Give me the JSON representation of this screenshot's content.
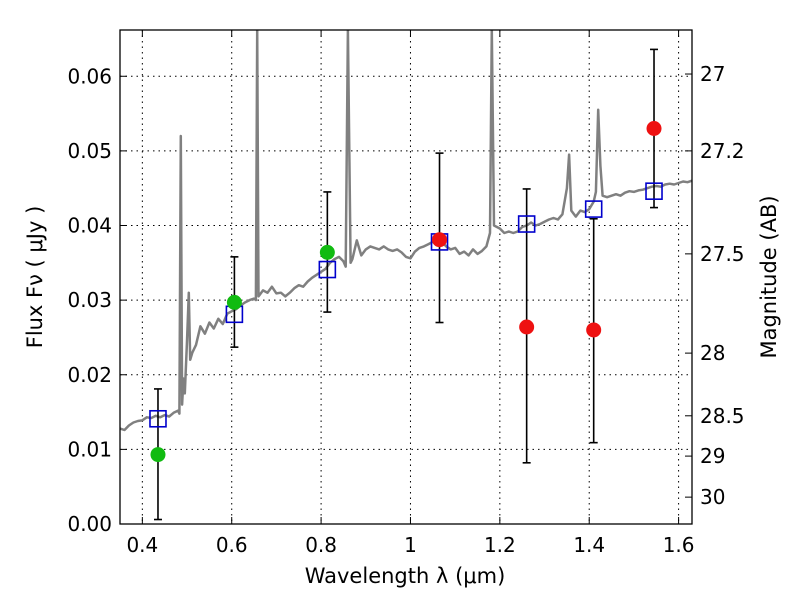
{
  "chart_data": {
    "type": "scatter",
    "xlabel": "Wavelength  λ (μm)",
    "ylabel": "Flux  Fν  ( μJy )",
    "y2label": "Magnitude (AB)",
    "xlim": [
      0.35,
      1.63
    ],
    "ylim": [
      0.0,
      0.0662
    ],
    "grid": true,
    "x_ticks": [
      0.4,
      0.6,
      0.8,
      1.0,
      1.2,
      1.4,
      1.6
    ],
    "x_tick_labels": [
      "0.4",
      "0.6",
      "0.8",
      "1",
      "1.2",
      "1.4",
      "1.6"
    ],
    "y_ticks": [
      0.0,
      0.01,
      0.02,
      0.03,
      0.04,
      0.05,
      0.06
    ],
    "y_tick_labels": [
      "0.00",
      "0.01",
      "0.02",
      "0.03",
      "0.04",
      "0.05",
      "0.06"
    ],
    "mag_ticks": [
      {
        "flux": 0.0603,
        "label": "27"
      },
      {
        "flux": 0.05,
        "label": "27.2"
      },
      {
        "flux": 0.0362,
        "label": "27.5"
      },
      {
        "flux": 0.0229,
        "label": "28"
      },
      {
        "flux": 0.0145,
        "label": "28.5"
      },
      {
        "flux": 0.0091,
        "label": "29"
      },
      {
        "flux": 0.0036,
        "label": "30"
      }
    ],
    "colors": {
      "spectrum": "#808080",
      "model_photometry": "#0000cc",
      "detection": "#11bb11",
      "nondetection": "#ee1111",
      "errorbar": "#000000"
    },
    "spectrum": [
      [
        0.35,
        0.0128
      ],
      [
        0.36,
        0.0126
      ],
      [
        0.37,
        0.0132
      ],
      [
        0.38,
        0.0136
      ],
      [
        0.39,
        0.0138
      ],
      [
        0.4,
        0.0139
      ],
      [
        0.41,
        0.0143
      ],
      [
        0.42,
        0.0142
      ],
      [
        0.43,
        0.0145
      ],
      [
        0.44,
        0.0143
      ],
      [
        0.45,
        0.0146
      ],
      [
        0.46,
        0.0144
      ],
      [
        0.47,
        0.0149
      ],
      [
        0.48,
        0.0152
      ],
      [
        0.483,
        0.0148
      ],
      [
        0.486,
        0.052
      ],
      [
        0.489,
        0.016
      ],
      [
        0.492,
        0.0195
      ],
      [
        0.495,
        0.0175
      ],
      [
        0.5,
        0.0245
      ],
      [
        0.504,
        0.031
      ],
      [
        0.507,
        0.022
      ],
      [
        0.512,
        0.023
      ],
      [
        0.52,
        0.024
      ],
      [
        0.53,
        0.0265
      ],
      [
        0.54,
        0.0255
      ],
      [
        0.55,
        0.027
      ],
      [
        0.56,
        0.0262
      ],
      [
        0.57,
        0.0275
      ],
      [
        0.58,
        0.0268
      ],
      [
        0.59,
        0.0282
      ],
      [
        0.6,
        0.0285
      ],
      [
        0.61,
        0.0288
      ],
      [
        0.62,
        0.0293
      ],
      [
        0.63,
        0.0297
      ],
      [
        0.64,
        0.03
      ],
      [
        0.65,
        0.0302
      ],
      [
        0.654,
        0.03
      ],
      [
        0.657,
        0.0662
      ],
      [
        0.66,
        0.0305
      ],
      [
        0.67,
        0.0313
      ],
      [
        0.68,
        0.031
      ],
      [
        0.69,
        0.0318
      ],
      [
        0.7,
        0.0309
      ],
      [
        0.71,
        0.031
      ],
      [
        0.72,
        0.0305
      ],
      [
        0.73,
        0.031
      ],
      [
        0.74,
        0.0316
      ],
      [
        0.75,
        0.032
      ],
      [
        0.76,
        0.0318
      ],
      [
        0.77,
        0.0325
      ],
      [
        0.78,
        0.033
      ],
      [
        0.79,
        0.0334
      ],
      [
        0.8,
        0.0338
      ],
      [
        0.81,
        0.0342
      ],
      [
        0.82,
        0.035
      ],
      [
        0.83,
        0.0355
      ],
      [
        0.84,
        0.0358
      ],
      [
        0.85,
        0.0352
      ],
      [
        0.855,
        0.0345
      ],
      [
        0.86,
        0.0662
      ],
      [
        0.866,
        0.035
      ],
      [
        0.87,
        0.0355
      ],
      [
        0.88,
        0.038
      ],
      [
        0.89,
        0.036
      ],
      [
        0.9,
        0.0368
      ],
      [
        0.91,
        0.0372
      ],
      [
        0.92,
        0.037
      ],
      [
        0.93,
        0.0368
      ],
      [
        0.94,
        0.0372
      ],
      [
        0.95,
        0.0368
      ],
      [
        0.96,
        0.0366
      ],
      [
        0.97,
        0.0368
      ],
      [
        0.98,
        0.0364
      ],
      [
        0.99,
        0.0358
      ],
      [
        1.0,
        0.0356
      ],
      [
        1.01,
        0.0365
      ],
      [
        1.02,
        0.037
      ],
      [
        1.03,
        0.0372
      ],
      [
        1.04,
        0.0375
      ],
      [
        1.05,
        0.0378
      ],
      [
        1.06,
        0.038
      ],
      [
        1.07,
        0.0378
      ],
      [
        1.08,
        0.0372
      ],
      [
        1.09,
        0.0368
      ],
      [
        1.1,
        0.037
      ],
      [
        1.11,
        0.0362
      ],
      [
        1.12,
        0.0365
      ],
      [
        1.13,
        0.036
      ],
      [
        1.14,
        0.0368
      ],
      [
        1.15,
        0.0362
      ],
      [
        1.16,
        0.0366
      ],
      [
        1.17,
        0.0372
      ],
      [
        1.178,
        0.039
      ],
      [
        1.182,
        0.0662
      ],
      [
        1.187,
        0.04
      ],
      [
        1.2,
        0.0396
      ],
      [
        1.21,
        0.039
      ],
      [
        1.22,
        0.0392
      ],
      [
        1.23,
        0.039
      ],
      [
        1.24,
        0.0392
      ],
      [
        1.25,
        0.0398
      ],
      [
        1.26,
        0.04
      ],
      [
        1.27,
        0.0404
      ],
      [
        1.28,
        0.04
      ],
      [
        1.29,
        0.0402
      ],
      [
        1.3,
        0.0405
      ],
      [
        1.31,
        0.0408
      ],
      [
        1.32,
        0.041
      ],
      [
        1.33,
        0.0408
      ],
      [
        1.34,
        0.0415
      ],
      [
        1.35,
        0.045
      ],
      [
        1.355,
        0.0495
      ],
      [
        1.36,
        0.042
      ],
      [
        1.37,
        0.0412
      ],
      [
        1.38,
        0.042
      ],
      [
        1.39,
        0.0418
      ],
      [
        1.4,
        0.0422
      ],
      [
        1.41,
        0.0432
      ],
      [
        1.415,
        0.0445
      ],
      [
        1.42,
        0.0555
      ],
      [
        1.425,
        0.048
      ],
      [
        1.43,
        0.044
      ],
      [
        1.44,
        0.0438
      ],
      [
        1.45,
        0.044
      ],
      [
        1.46,
        0.0442
      ],
      [
        1.47,
        0.044
      ],
      [
        1.48,
        0.0444
      ],
      [
        1.49,
        0.0446
      ],
      [
        1.5,
        0.0445
      ],
      [
        1.51,
        0.0447
      ],
      [
        1.52,
        0.0448
      ],
      [
        1.53,
        0.045
      ],
      [
        1.54,
        0.0452
      ],
      [
        1.55,
        0.0453
      ],
      [
        1.56,
        0.0452
      ],
      [
        1.57,
        0.0455
      ],
      [
        1.58,
        0.0456
      ],
      [
        1.59,
        0.0455
      ],
      [
        1.6,
        0.0457
      ],
      [
        1.61,
        0.0459
      ],
      [
        1.62,
        0.0458
      ],
      [
        1.63,
        0.046
      ]
    ],
    "model_photometry": [
      {
        "x": 0.435,
        "y": 0.0141
      },
      {
        "x": 0.606,
        "y": 0.0281
      },
      {
        "x": 0.814,
        "y": 0.0341
      },
      {
        "x": 1.065,
        "y": 0.0378
      },
      {
        "x": 1.26,
        "y": 0.0402
      },
      {
        "x": 1.41,
        "y": 0.0422
      },
      {
        "x": 1.545,
        "y": 0.0446
      }
    ],
    "observed_photometry": [
      {
        "x": 0.435,
        "y": 0.0093,
        "err_low": 0.0006,
        "err_high": 0.0181,
        "status": "detection"
      },
      {
        "x": 0.606,
        "y": 0.0297,
        "err_low": 0.0237,
        "err_high": 0.0358,
        "status": "detection"
      },
      {
        "x": 0.814,
        "y": 0.0364,
        "err_low": 0.0284,
        "err_high": 0.0445,
        "status": "detection"
      },
      {
        "x": 1.065,
        "y": 0.0381,
        "err_low": 0.027,
        "err_high": 0.0497,
        "status": "nondetection"
      },
      {
        "x": 1.26,
        "y": 0.0264,
        "err_low": 0.0082,
        "err_high": 0.0449,
        "status": "nondetection"
      },
      {
        "x": 1.41,
        "y": 0.026,
        "err_low": 0.0109,
        "err_high": 0.0409,
        "status": "nondetection"
      },
      {
        "x": 1.545,
        "y": 0.053,
        "err_low": 0.0424,
        "err_high": 0.0636,
        "status": "nondetection"
      }
    ]
  }
}
